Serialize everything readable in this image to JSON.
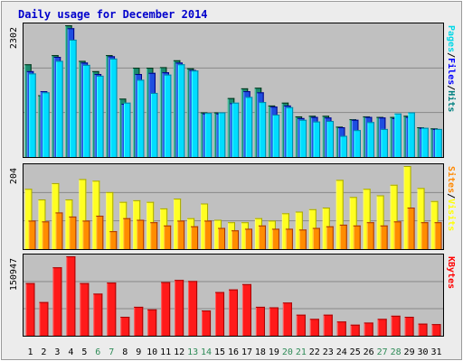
{
  "chart_data": {
    "type": "bar",
    "title": "Daily usage for December 2014",
    "categories": [
      "1",
      "2",
      "3",
      "4",
      "5",
      "6",
      "7",
      "8",
      "9",
      "10",
      "11",
      "12",
      "13",
      "14",
      "15",
      "16",
      "17",
      "18",
      "19",
      "20",
      "21",
      "22",
      "23",
      "24",
      "25",
      "26",
      "27",
      "28",
      "29",
      "30",
      "31"
    ],
    "weekend_days": [
      "6",
      "7",
      "13",
      "14",
      "20",
      "21",
      "27",
      "28"
    ],
    "panels": [
      {
        "id": "usage",
        "ymax_label": "2302",
        "ylim": [
          0,
          2302
        ],
        "legend": [
          {
            "text": "Pages",
            "color": "#00d8e8"
          },
          {
            "text": "/",
            "color": "#000000"
          },
          {
            "text": "Files",
            "color": "#0000ff"
          },
          {
            "text": "/",
            "color": "#000000"
          },
          {
            "text": "Hits",
            "color": "#008080"
          }
        ],
        "series": [
          {
            "name": "Hits",
            "color": "#1a8a6e",
            "values": [
              1620,
              1080,
              1780,
              2302,
              1680,
              1500,
              1780,
              1020,
              1560,
              1560,
              1570,
              1690,
              1550,
              780,
              780,
              1030,
              1200,
              1210,
              900,
              950,
              710,
              720,
              720,
              530,
              660,
              710,
              700,
              700,
              720,
              520,
              500
            ]
          },
          {
            "name": "Files",
            "color": "#1e4ee0",
            "values": [
              1500,
              1150,
              1750,
              2250,
              1650,
              1450,
              1760,
              930,
              1450,
              1470,
              1480,
              1650,
              1520,
              760,
              760,
              940,
              1150,
              1130,
              880,
              900,
              680,
              700,
              690,
              520,
              650,
              700,
              690,
              680,
              700,
              510,
              490
            ]
          },
          {
            "name": "Pages",
            "color": "#00ddff",
            "values": [
              1460,
              1130,
              1680,
              2050,
              1610,
              1420,
              1720,
              950,
              1350,
              1120,
              1440,
              1620,
              1510,
              770,
              780,
              950,
              1050,
              960,
              740,
              870,
              650,
              620,
              630,
              370,
              470,
              610,
              490,
              760,
              780,
              510,
              490
            ]
          }
        ]
      },
      {
        "id": "sites",
        "ymax_label": "204",
        "ylim": [
          0,
          204
        ],
        "legend": [
          {
            "text": "Sites",
            "color": "#ff8800"
          },
          {
            "text": "/",
            "color": "#000000"
          },
          {
            "text": "Visits",
            "color": "#ffff00"
          }
        ],
        "series": [
          {
            "name": "Visits",
            "color": "#ffff22",
            "values": [
              148,
              122,
              162,
              122,
              172,
              168,
              140,
              116,
              120,
              116,
              100,
              124,
              76,
              112,
              72,
              66,
              66,
              76,
              70,
              88,
              92,
              98,
              102,
              170,
              128,
              148,
              132,
              158,
              204,
              150,
              118
            ]
          },
          {
            "name": "Sites",
            "color": "#ff8c00",
            "values": [
              70,
              68,
              90,
              80,
              70,
              82,
              44,
              76,
              72,
              66,
              58,
              70,
              56,
              70,
              52,
              46,
              50,
              58,
              50,
              50,
              48,
              52,
              56,
              60,
              58,
              66,
              58,
              68,
              102,
              66,
              66
            ]
          }
        ]
      },
      {
        "id": "kbytes",
        "ymax_label": "150947",
        "ylim": [
          0,
          150947
        ],
        "legend": [
          {
            "text": "KBytes",
            "color": "#ff0000"
          }
        ],
        "series": [
          {
            "name": "KBytes",
            "color": "#ff1a1a",
            "values": [
              100000,
              64000,
              130000,
              150947,
              100000,
              80000,
              101000,
              36000,
              55000,
              50000,
              102000,
              106000,
              104000,
              48000,
              83000,
              88000,
              98000,
              55000,
              54000,
              63000,
              40000,
              32000,
              40000,
              27000,
              21000,
              25000,
              32000,
              38000,
              36000,
              23000,
              22000
            ]
          }
        ]
      }
    ]
  }
}
